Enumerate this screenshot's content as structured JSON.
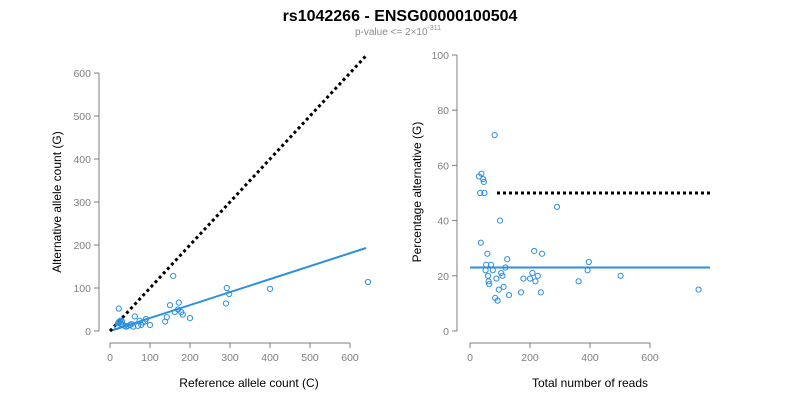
{
  "title": "rs1042266 - ENSG00000100504",
  "subtitle": {
    "prefix": "p-value <= 2×10",
    "exponent": "-311"
  },
  "colors": {
    "points": "#2b8fe0",
    "fit_line": "#2b8fe0",
    "reference_line": "#000000",
    "axis": "#7f7f7f"
  },
  "chart_data": [
    {
      "type": "scatter",
      "title": "",
      "xlabel": "Reference allele count (C)",
      "ylabel": "Alternative allele count (G)",
      "xlim": [
        0,
        640
      ],
      "ylim": [
        0,
        600
      ],
      "x_ticks": [
        0,
        100,
        200,
        300,
        400,
        500,
        600
      ],
      "y_ticks": [
        0,
        100,
        200,
        300,
        400,
        500,
        600
      ],
      "grid": false,
      "points": [
        [
          18,
          10
        ],
        [
          20,
          18
        ],
        [
          22,
          20
        ],
        [
          24,
          22
        ],
        [
          26,
          24
        ],
        [
          28,
          16
        ],
        [
          30,
          22
        ],
        [
          22,
          52
        ],
        [
          32,
          14
        ],
        [
          36,
          12
        ],
        [
          40,
          10
        ],
        [
          45,
          12
        ],
        [
          50,
          14
        ],
        [
          54,
          16
        ],
        [
          58,
          10
        ],
        [
          62,
          34
        ],
        [
          70,
          12
        ],
        [
          74,
          24
        ],
        [
          78,
          14
        ],
        [
          82,
          20
        ],
        [
          88,
          22
        ],
        [
          90,
          28
        ],
        [
          100,
          14
        ],
        [
          138,
          22
        ],
        [
          142,
          32
        ],
        [
          150,
          60
        ],
        [
          158,
          128
        ],
        [
          162,
          44
        ],
        [
          170,
          50
        ],
        [
          172,
          66
        ],
        [
          178,
          44
        ],
        [
          182,
          38
        ],
        [
          200,
          30
        ],
        [
          290,
          64
        ],
        [
          292,
          100
        ],
        [
          298,
          86
        ],
        [
          400,
          98
        ],
        [
          645,
          114
        ]
      ],
      "lines": [
        {
          "name": "fit",
          "style": "solid",
          "from": [
            0,
            0
          ],
          "to": [
            640,
            193
          ]
        },
        {
          "name": "reference",
          "style": "dotted",
          "from": [
            0,
            0
          ],
          "to": [
            640,
            640
          ]
        }
      ]
    },
    {
      "type": "scatter",
      "title": "",
      "xlabel": "Total number of reads",
      "ylabel": "Percentage alternative (G)",
      "xlim": [
        0,
        800
      ],
      "ylim": [
        0,
        100
      ],
      "x_ticks": [
        0,
        200,
        400,
        600
      ],
      "y_ticks": [
        0,
        20,
        40,
        60,
        80,
        100
      ],
      "grid": false,
      "points": [
        [
          30,
          56
        ],
        [
          34,
          50
        ],
        [
          38,
          57
        ],
        [
          44,
          55
        ],
        [
          46,
          54
        ],
        [
          36,
          32
        ],
        [
          48,
          50
        ],
        [
          52,
          22
        ],
        [
          54,
          24
        ],
        [
          58,
          28
        ],
        [
          60,
          20
        ],
        [
          62,
          18
        ],
        [
          64,
          17
        ],
        [
          70,
          24
        ],
        [
          76,
          22
        ],
        [
          82,
          71
        ],
        [
          84,
          12
        ],
        [
          88,
          19
        ],
        [
          92,
          11
        ],
        [
          96,
          15
        ],
        [
          100,
          40
        ],
        [
          104,
          21
        ],
        [
          108,
          20
        ],
        [
          112,
          16
        ],
        [
          118,
          23
        ],
        [
          124,
          26
        ],
        [
          130,
          13
        ],
        [
          170,
          14
        ],
        [
          178,
          19
        ],
        [
          200,
          19
        ],
        [
          208,
          21
        ],
        [
          214,
          29
        ],
        [
          218,
          18
        ],
        [
          226,
          20
        ],
        [
          236,
          14
        ],
        [
          240,
          28
        ],
        [
          290,
          45
        ],
        [
          362,
          18
        ],
        [
          392,
          22
        ],
        [
          396,
          25
        ],
        [
          502,
          20
        ],
        [
          762,
          15
        ]
      ],
      "lines": [
        {
          "name": "mean",
          "style": "solid",
          "from": [
            0,
            23
          ],
          "to": [
            800,
            23
          ]
        },
        {
          "name": "reference",
          "style": "dotted",
          "from": [
            90,
            50
          ],
          "to": [
            800,
            50
          ]
        }
      ]
    }
  ]
}
